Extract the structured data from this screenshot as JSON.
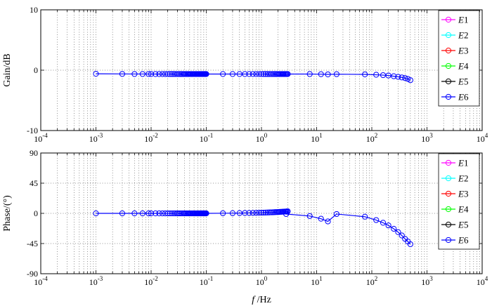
{
  "chart_data": [
    {
      "type": "line",
      "panel": "gain",
      "xscale": "log",
      "xlim": [
        0.0001,
        10000
      ],
      "ylim": [
        -10,
        10
      ],
      "yticks": [
        -10,
        0,
        10
      ],
      "ylabel": "Gain/dB",
      "xlabel": "",
      "grid": true,
      "legend_position": "top-right",
      "x_tick_labels": [
        {
          "base": "10",
          "exp": "-4"
        },
        {
          "base": "10",
          "exp": "-3"
        },
        {
          "base": "10",
          "exp": "-2"
        },
        {
          "base": "10",
          "exp": "-1"
        },
        {
          "base": "10",
          "exp": "0"
        },
        {
          "base": "10",
          "exp": "1"
        },
        {
          "base": "10",
          "exp": "2"
        },
        {
          "base": "10",
          "exp": "3"
        },
        {
          "base": "10",
          "exp": "4"
        }
      ],
      "y_tick_labels": [
        "10",
        "0",
        "-10"
      ],
      "legend": [
        {
          "prefix": "E",
          "num": "1",
          "color": "#ff00ff"
        },
        {
          "prefix": "E",
          "num": "2",
          "color": "#00ffff"
        },
        {
          "prefix": "E",
          "num": "3",
          "color": "#ff0000"
        },
        {
          "prefix": "E",
          "num": "4",
          "color": "#00ff00"
        },
        {
          "prefix": "E",
          "num": "5",
          "color": "#000000"
        },
        {
          "prefix": "E",
          "num": "6",
          "color": "#0000ff"
        }
      ],
      "series": [
        {
          "color": "#0000ff",
          "x": [
            0.001,
            0.003,
            0.005,
            0.007,
            0.009,
            0.01,
            0.012,
            0.014,
            0.016,
            0.018,
            0.02,
            0.022,
            0.024,
            0.026,
            0.028,
            0.03,
            0.032,
            0.034,
            0.036,
            0.038,
            0.04,
            0.042,
            0.044,
            0.046,
            0.048,
            0.05,
            0.052,
            0.054,
            0.056,
            0.058,
            0.06,
            0.062,
            0.064,
            0.066,
            0.068,
            0.07,
            0.072,
            0.074,
            0.076,
            0.078,
            0.08,
            0.082,
            0.084,
            0.086,
            0.088,
            0.09,
            0.092,
            0.094,
            0.096,
            0.098,
            0.1,
            0.2,
            0.3,
            0.4,
            0.5,
            0.6,
            0.7,
            0.8,
            0.9,
            1,
            1.1,
            1.2,
            1.3,
            1.4,
            1.5,
            1.6,
            1.7,
            1.8,
            1.9,
            2,
            2.1,
            2.2,
            2.3,
            2.4,
            2.5,
            2.6,
            2.7,
            2.8,
            2.9,
            3,
            7.5,
            12,
            16,
            23,
            75,
            120,
            160,
            200,
            250,
            300,
            350,
            400,
            450,
            500
          ],
          "y": [
            -0.6,
            -0.62,
            -0.63,
            -0.63,
            -0.63,
            -0.64,
            -0.64,
            -0.64,
            -0.64,
            -0.64,
            -0.64,
            -0.64,
            -0.64,
            -0.64,
            -0.64,
            -0.64,
            -0.64,
            -0.64,
            -0.64,
            -0.64,
            -0.64,
            -0.64,
            -0.64,
            -0.64,
            -0.64,
            -0.64,
            -0.64,
            -0.64,
            -0.64,
            -0.64,
            -0.64,
            -0.64,
            -0.64,
            -0.64,
            -0.64,
            -0.64,
            -0.64,
            -0.64,
            -0.64,
            -0.64,
            -0.64,
            -0.64,
            -0.64,
            -0.64,
            -0.64,
            -0.64,
            -0.64,
            -0.64,
            -0.64,
            -0.64,
            -0.64,
            -0.64,
            -0.64,
            -0.64,
            -0.64,
            -0.64,
            -0.64,
            -0.64,
            -0.64,
            -0.64,
            -0.64,
            -0.64,
            -0.64,
            -0.64,
            -0.64,
            -0.64,
            -0.64,
            -0.64,
            -0.64,
            -0.64,
            -0.64,
            -0.64,
            -0.64,
            -0.64,
            -0.64,
            -0.64,
            -0.64,
            -0.64,
            -0.64,
            -0.64,
            -0.64,
            -0.66,
            -0.7,
            -0.66,
            -0.7,
            -0.76,
            -0.82,
            -0.88,
            -1.0,
            -1.1,
            -1.2,
            -1.3,
            -1.45,
            -1.65
          ]
        }
      ]
    },
    {
      "type": "line",
      "panel": "phase",
      "xscale": "log",
      "xlim": [
        0.0001,
        10000
      ],
      "ylim": [
        -90,
        90
      ],
      "yticks": [
        -90,
        -45,
        0,
        45,
        90
      ],
      "ylabel": "Phase/(°)",
      "xlabel_italic": "f",
      "xlabel_rest": " /Hz",
      "grid": true,
      "legend_position": "top-right",
      "x_tick_labels": [
        {
          "base": "10",
          "exp": "-4"
        },
        {
          "base": "10",
          "exp": "-3"
        },
        {
          "base": "10",
          "exp": "-2"
        },
        {
          "base": "10",
          "exp": "-1"
        },
        {
          "base": "10",
          "exp": "0"
        },
        {
          "base": "10",
          "exp": "1"
        },
        {
          "base": "10",
          "exp": "2"
        },
        {
          "base": "10",
          "exp": "3"
        },
        {
          "base": "10",
          "exp": "4"
        }
      ],
      "y_tick_labels": [
        "90",
        "45",
        "0",
        "-45",
        "-90"
      ],
      "legend": [
        {
          "prefix": "E",
          "num": "1",
          "color": "#ff00ff"
        },
        {
          "prefix": "E",
          "num": "2",
          "color": "#00ffff"
        },
        {
          "prefix": "E",
          "num": "3",
          "color": "#ff0000"
        },
        {
          "prefix": "E",
          "num": "4",
          "color": "#00ff00"
        },
        {
          "prefix": "E",
          "num": "5",
          "color": "#000000"
        },
        {
          "prefix": "E",
          "num": "6",
          "color": "#0000ff"
        }
      ],
      "series": [
        {
          "color": "#0000ff",
          "x": [
            0.001,
            0.003,
            0.005,
            0.007,
            0.009,
            0.01,
            0.012,
            0.014,
            0.016,
            0.018,
            0.02,
            0.022,
            0.024,
            0.026,
            0.028,
            0.03,
            0.032,
            0.034,
            0.036,
            0.038,
            0.04,
            0.042,
            0.044,
            0.046,
            0.048,
            0.05,
            0.052,
            0.054,
            0.056,
            0.058,
            0.06,
            0.062,
            0.064,
            0.066,
            0.068,
            0.07,
            0.072,
            0.074,
            0.076,
            0.078,
            0.08,
            0.082,
            0.084,
            0.086,
            0.088,
            0.09,
            0.092,
            0.094,
            0.096,
            0.098,
            0.1,
            0.2,
            0.3,
            0.4,
            0.5,
            0.6,
            0.7,
            0.8,
            0.9,
            1,
            1.1,
            1.2,
            1.3,
            1.4,
            1.5,
            1.6,
            1.7,
            1.8,
            1.9,
            2,
            2.1,
            2.2,
            2.3,
            2.4,
            2.5,
            2.6,
            2.7,
            2.8,
            2.9,
            3,
            2.8,
            7.5,
            12,
            16,
            23,
            75,
            120,
            160,
            200,
            250,
            300,
            350,
            400,
            450,
            500
          ],
          "y": [
            0,
            0,
            0,
            0,
            0,
            0,
            0,
            0,
            0,
            0,
            0,
            0,
            0,
            0,
            0,
            0,
            0,
            0,
            0,
            0,
            0,
            0,
            0,
            0,
            0,
            0,
            0,
            0,
            0,
            0,
            0,
            0,
            0,
            0,
            0,
            0,
            0,
            0,
            0,
            0,
            0,
            0,
            0,
            0,
            0,
            0,
            0,
            0,
            0,
            0,
            0,
            0.2,
            0.3,
            0.4,
            0.5,
            0.6,
            0.7,
            0.8,
            0.9,
            1.0,
            1.1,
            1.2,
            1.3,
            1.4,
            1.5,
            1.6,
            1.7,
            1.8,
            1.9,
            2.0,
            2.1,
            2.2,
            2.3,
            2.4,
            2.5,
            2.6,
            2.7,
            2.8,
            2.9,
            3.0,
            -1,
            -4,
            -8,
            -12,
            -1,
            -5,
            -10,
            -14,
            -18,
            -23,
            -28,
            -33,
            -38,
            -42,
            -46
          ]
        }
      ]
    }
  ]
}
